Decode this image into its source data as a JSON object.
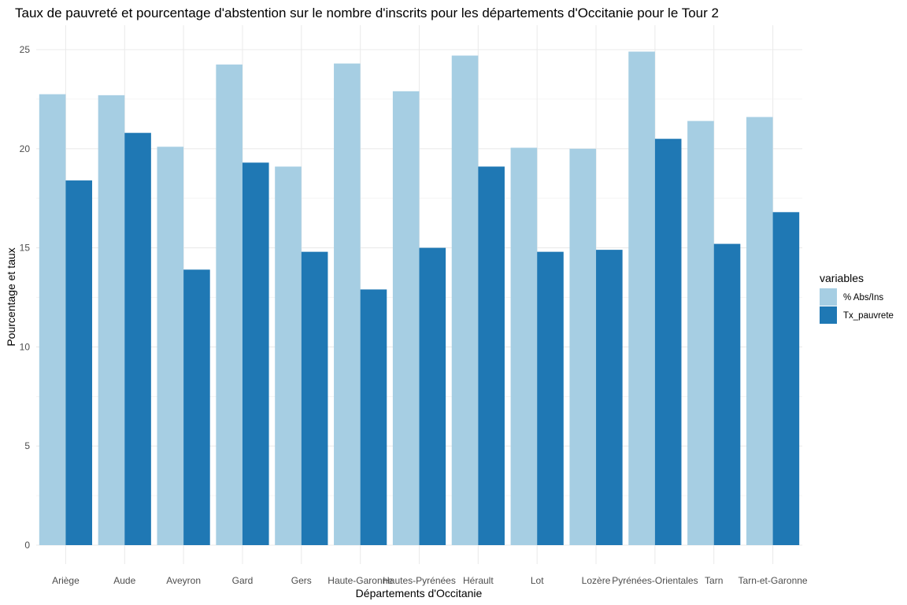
{
  "chart_data": {
    "type": "bar",
    "title": "Taux de pauvreté et pourcentage d'abstention sur le nombre d'inscrits pour les départements d'Occitanie pour le Tour 2",
    "xlabel": "Départements d'Occitanie",
    "ylabel": "Pourcentage et taux",
    "categories": [
      "Ariège",
      "Aude",
      "Aveyron",
      "Gard",
      "Gers",
      "Haute-Garonne",
      "Hautes-Pyrénées",
      "Hérault",
      "Lot",
      "Lozère",
      "Pyrénées-Orientales",
      "Tarn",
      "Tarn-et-Garonne"
    ],
    "series": [
      {
        "name": "% Abs/Ins",
        "color": "#a6cee3",
        "values": [
          22.75,
          22.7,
          20.1,
          24.25,
          19.1,
          24.3,
          22.9,
          24.7,
          20.05,
          20.0,
          24.9,
          21.4,
          21.6
        ]
      },
      {
        "name": "Tx_pauvrete",
        "color": "#1f78b4",
        "values": [
          18.4,
          20.8,
          13.9,
          19.3,
          14.8,
          12.9,
          15.0,
          19.1,
          14.8,
          14.9,
          20.5,
          15.2,
          16.8
        ]
      }
    ],
    "ylim": [
      0,
      25.5
    ],
    "yticks": [
      0,
      5,
      10,
      15,
      20,
      25
    ],
    "grid": true,
    "legend": {
      "title": "variables",
      "position": "right"
    }
  }
}
